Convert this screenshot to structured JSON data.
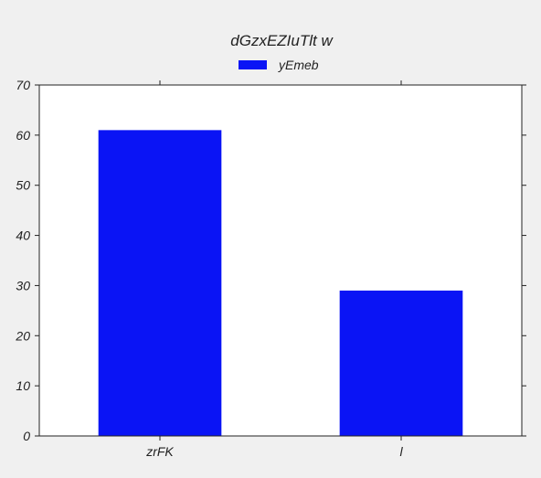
{
  "chart_data": {
    "type": "bar",
    "title": "dGzxEZIuTlt  w",
    "xlabel": "",
    "ylabel": "",
    "categories": [
      "zrFK",
      "l"
    ],
    "series": [
      {
        "name": "yEmeb",
        "values": [
          61,
          29
        ],
        "color": "#0a14f5"
      }
    ],
    "ylim": [
      0,
      70
    ],
    "yticks": [
      0,
      10,
      20,
      30,
      40,
      50,
      60,
      70
    ],
    "grid": false,
    "legend_position": "top-center"
  }
}
